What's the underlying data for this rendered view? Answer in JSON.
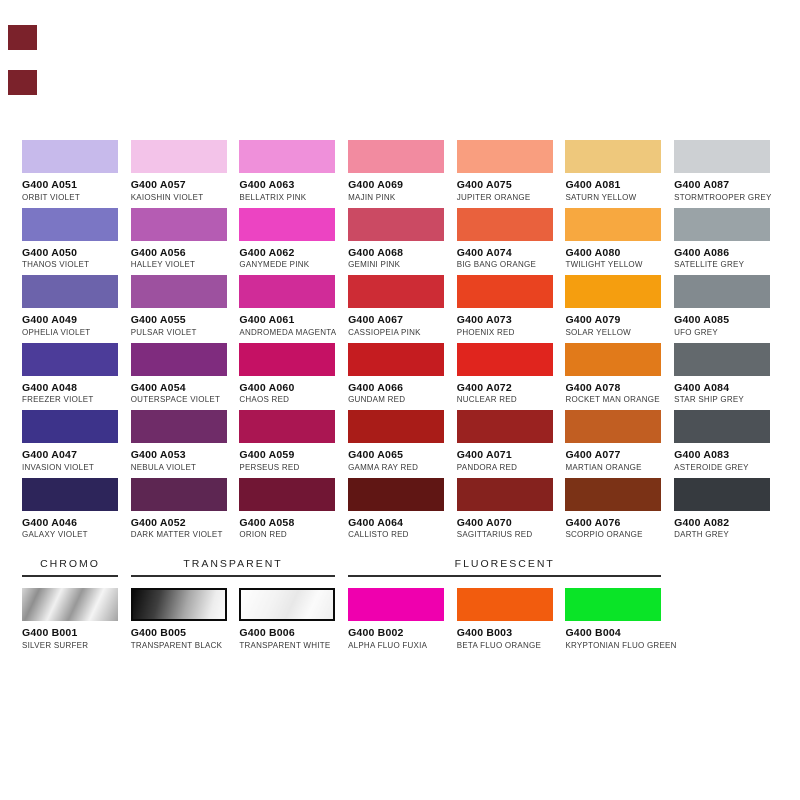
{
  "page": {
    "background": "#ffffff"
  },
  "corner_marks": {
    "color": "#7b222b"
  },
  "palette_grid": {
    "rows": [
      [
        {
          "code": "G400 A051",
          "name": "ORBIT VIOLET",
          "color": "#c7baeb"
        },
        {
          "code": "G400 A057",
          "name": "KAIOSHIN VIOLET",
          "color": "#f3c3e9"
        },
        {
          "code": "G400 A063",
          "name": "BELLATRIX PINK",
          "color": "#ef90da"
        },
        {
          "code": "G400 A069",
          "name": "MAJIN PINK",
          "color": "#f28ba0"
        },
        {
          "code": "G400 A075",
          "name": "JUPITER ORANGE",
          "color": "#f99e7f"
        },
        {
          "code": "G400 A081",
          "name": "SATURN YELLOW",
          "color": "#eec87c"
        },
        {
          "code": "G400 A087",
          "name": "STORMTROOPER GREY",
          "color": "#cdd0d3"
        }
      ],
      [
        {
          "code": "G400 A050",
          "name": "THANOS VIOLET",
          "color": "#7b76c4"
        },
        {
          "code": "G400 A056",
          "name": "HALLEY VIOLET",
          "color": "#b55cb3"
        },
        {
          "code": "G400 A062",
          "name": "GANYMEDE PINK",
          "color": "#ec44c2"
        },
        {
          "code": "G400 A068",
          "name": "GEMINI PINK",
          "color": "#cb4a63"
        },
        {
          "code": "G400 A074",
          "name": "BIG BANG ORANGE",
          "color": "#e9613d"
        },
        {
          "code": "G400 A080",
          "name": "TWILIGHT YELLOW",
          "color": "#f7a840"
        },
        {
          "code": "G400 A086",
          "name": "SATELLITE GREY",
          "color": "#9aa3a7"
        }
      ],
      [
        {
          "code": "G400 A049",
          "name": "OPHELIA VIOLET",
          "color": "#6c63ab"
        },
        {
          "code": "G400 A055",
          "name": "PULSAR VIOLET",
          "color": "#9d519f"
        },
        {
          "code": "G400 A061",
          "name": "ANDROMEDA MAGENTA",
          "color": "#d02c98"
        },
        {
          "code": "G400 A067",
          "name": "CASSIOPEIA PINK",
          "color": "#cd2c35"
        },
        {
          "code": "G400 A073",
          "name": "PHOENIX RED",
          "color": "#e94320"
        },
        {
          "code": "G400 A079",
          "name": "SOLAR YELLOW",
          "color": "#f59e0f"
        },
        {
          "code": "G400 A085",
          "name": "UFO GREY",
          "color": "#828a8f"
        }
      ],
      [
        {
          "code": "G400 A048",
          "name": "FREEZER VIOLET",
          "color": "#4c3c99"
        },
        {
          "code": "G400 A054",
          "name": "OUTERSPACE VIOLET",
          "color": "#7f2c7e"
        },
        {
          "code": "G400 A060",
          "name": "CHAOS RED",
          "color": "#c51164"
        },
        {
          "code": "G400 A066",
          "name": "GUNDAM RED",
          "color": "#c51c20"
        },
        {
          "code": "G400 A072",
          "name": "NUCLEAR RED",
          "color": "#e0251e"
        },
        {
          "code": "G400 A078",
          "name": "ROCKET MAN ORANGE",
          "color": "#e17a1a"
        },
        {
          "code": "G400 A084",
          "name": "STAR SHIP GREY",
          "color": "#63696d"
        }
      ],
      [
        {
          "code": "G400 A047",
          "name": "INVASION VIOLET",
          "color": "#3d338a"
        },
        {
          "code": "G400 A053",
          "name": "NEBULA VIOLET",
          "color": "#6f2c68"
        },
        {
          "code": "G400 A059",
          "name": "PERSEUS RED",
          "color": "#aa1652"
        },
        {
          "code": "G400 A065",
          "name": "GAMMA RAY RED",
          "color": "#a91c18"
        },
        {
          "code": "G400 A071",
          "name": "PANDORA RED",
          "color": "#9a2220"
        },
        {
          "code": "G400 A077",
          "name": "MARTIAN ORANGE",
          "color": "#c15e22"
        },
        {
          "code": "G400 A083",
          "name": "ASTEROIDE GREY",
          "color": "#4c5156"
        }
      ],
      [
        {
          "code": "G400 A046",
          "name": "GALAXY VIOLET",
          "color": "#2d255a"
        },
        {
          "code": "G400 A052",
          "name": "DARK MATTER VIOLET",
          "color": "#5d2652"
        },
        {
          "code": "G400 A058",
          "name": "ORION RED",
          "color": "#711634"
        },
        {
          "code": "G400 A064",
          "name": "CALLISTO RED",
          "color": "#601614"
        },
        {
          "code": "G400 A070",
          "name": "SAGITTARIUS RED",
          "color": "#85221e"
        },
        {
          "code": "G400 A076",
          "name": "SCORPIO ORANGE",
          "color": "#7b3216"
        },
        {
          "code": "G400 A082",
          "name": "DARTH GREY",
          "color": "#363a3f"
        }
      ]
    ]
  },
  "bottom_section": {
    "groups": [
      {
        "title": "CHROMO",
        "items": [
          {
            "code": "G400 B001",
            "name": "SILVER SURFER",
            "style": "chrome"
          }
        ]
      },
      {
        "title": "TRANSPARENT",
        "items": [
          {
            "code": "G400 B005",
            "name": "TRANSPARENT BLACK",
            "style": "transparent-black"
          },
          {
            "code": "G400 B006",
            "name": "TRANSPARENT WHITE",
            "style": "transparent-white"
          }
        ]
      },
      {
        "title": "FLUORESCENT",
        "items": [
          {
            "code": "G400 B002",
            "name": "ALPHA FLUO FUXIA",
            "style": "solid",
            "color": "#ef00ae"
          },
          {
            "code": "G400 B003",
            "name": "BETA FLUO ORANGE",
            "style": "solid",
            "color": "#f25c0e"
          },
          {
            "code": "G400 B004",
            "name": "KRYPTONIAN FLUO GREEN",
            "style": "solid",
            "color": "#0ae427"
          }
        ]
      }
    ]
  }
}
